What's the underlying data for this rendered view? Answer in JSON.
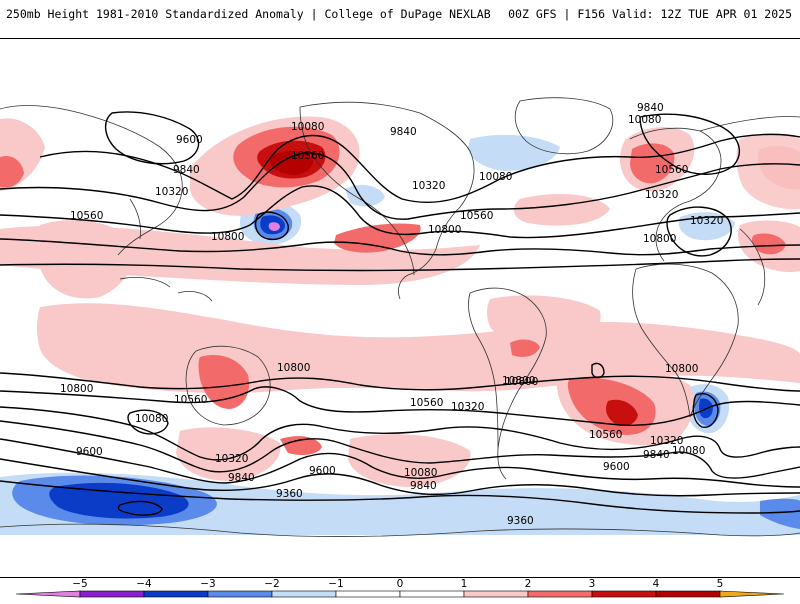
{
  "header": {
    "title_left": "250mb Height 1981-2010 Standardized Anomaly | College of DuPage NEXLAB",
    "title_right": "00Z GFS | F156 Valid: 12Z TUE APR 01 2025"
  },
  "colors": {
    "neg5": "#e080e0",
    "neg4": "#8a1fd0",
    "neg3": "#0a3cc8",
    "neg2": "#5a8aea",
    "neg1": "#c4dcf6",
    "zero": "#ffffff",
    "pos1": "#f9c8c8",
    "pos2": "#f26a6a",
    "pos3": "#c80f0f",
    "pos4": "#b40000",
    "pos5": "#f0a818",
    "coast": "#333333",
    "contour": "#000000"
  },
  "colorbar": {
    "ticks": [
      -5,
      -4,
      -3,
      -2,
      -1,
      0,
      1,
      2,
      3,
      4,
      5
    ],
    "tick_labels": [
      "−5",
      "−4",
      "−3",
      "−2",
      "−1",
      "0",
      "1",
      "2",
      "3",
      "4",
      "5"
    ]
  },
  "contour_labels": [
    {
      "text": "10080"
    },
    {
      "text": "10560"
    },
    {
      "text": "9600"
    },
    {
      "text": "9840"
    },
    {
      "text": "10320"
    },
    {
      "text": "10560"
    },
    {
      "text": "10800"
    },
    {
      "text": "9840"
    },
    {
      "text": "10320"
    },
    {
      "text": "10080"
    },
    {
      "text": "10560"
    },
    {
      "text": "10800"
    },
    {
      "text": "9840"
    },
    {
      "text": "10080"
    },
    {
      "text": "10560"
    },
    {
      "text": "10320"
    },
    {
      "text": "10320"
    },
    {
      "text": "10800"
    },
    {
      "text": "10800"
    },
    {
      "text": "10800"
    },
    {
      "text": "10560"
    },
    {
      "text": "10080"
    },
    {
      "text": "9600"
    },
    {
      "text": "10320"
    },
    {
      "text": "9840"
    },
    {
      "text": "9360"
    },
    {
      "text": "9600"
    },
    {
      "text": "10800"
    },
    {
      "text": "10560"
    },
    {
      "text": "10320"
    },
    {
      "text": "10080"
    },
    {
      "text": "9840"
    },
    {
      "text": "10800"
    },
    {
      "text": "10560"
    },
    {
      "text": "10320"
    },
    {
      "text": "10080"
    },
    {
      "text": "9840"
    },
    {
      "text": "9600"
    },
    {
      "text": "9360"
    },
    {
      "text": "10800"
    }
  ]
}
